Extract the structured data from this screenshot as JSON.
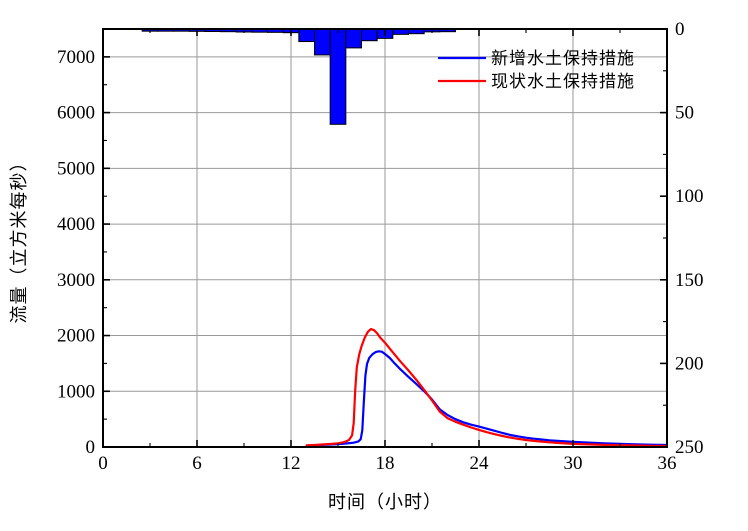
{
  "chart_data": {
    "type": "combo",
    "title": "",
    "xlabel": "时间（小时）",
    "ylabel": "流量（立方米每秒）",
    "x_axis": {
      "min": 0,
      "max": 36,
      "major_tick_values": [
        0,
        6,
        12,
        18,
        24,
        30,
        36
      ],
      "major_tick_labels": [
        "0",
        "6",
        "12",
        "18",
        "24",
        "30",
        "36"
      ],
      "minor_step": 3
    },
    "left_axis": {
      "min": 0,
      "max": 7500,
      "major_tick_values": [
        0,
        1000,
        2000,
        3000,
        4000,
        5000,
        6000,
        7000
      ],
      "major_tick_labels": [
        "0",
        "1000",
        "2000",
        "3000",
        "4000",
        "5000",
        "6000",
        "7000"
      ],
      "minor_step": 500
    },
    "right_axis": {
      "min": 0,
      "max": 250,
      "inverted": true,
      "major_tick_values": [
        0,
        50,
        100,
        150,
        200,
        250
      ],
      "major_tick_labels": [
        "0",
        "50",
        "100",
        "150",
        "200",
        "250"
      ],
      "minor_step": 25
    },
    "grid": {
      "color": "#9a9a9a",
      "vertical_at_hours": [
        6,
        12,
        18,
        24,
        30
      ],
      "horizontal_at_left_values": [
        1000,
        2000,
        3000,
        4000,
        5000,
        6000,
        7000
      ]
    },
    "legend": {
      "position": "top-right",
      "entries": [
        {
          "label": "新增水土保持措施",
          "color": "#0000ff"
        },
        {
          "label": "现状水土保持措施",
          "color": "#ff0000"
        }
      ]
    },
    "series": [
      {
        "name": "新增水土保持措施",
        "type": "line",
        "color": "#0000ff",
        "y_axis": "left",
        "points": [
          [
            13,
            25
          ],
          [
            13.5,
            32
          ],
          [
            14,
            38
          ],
          [
            14.5,
            44
          ],
          [
            15,
            52
          ],
          [
            15.5,
            62
          ],
          [
            16,
            78
          ],
          [
            16.3,
            100
          ],
          [
            16.45,
            140
          ],
          [
            16.55,
            300
          ],
          [
            16.65,
            800
          ],
          [
            16.75,
            1280
          ],
          [
            16.85,
            1490
          ],
          [
            17,
            1600
          ],
          [
            17.2,
            1665
          ],
          [
            17.4,
            1702
          ],
          [
            17.6,
            1718
          ],
          [
            17.8,
            1710
          ],
          [
            18,
            1668
          ],
          [
            18.3,
            1598
          ],
          [
            18.6,
            1505
          ],
          [
            19,
            1388
          ],
          [
            19.5,
            1258
          ],
          [
            20,
            1132
          ],
          [
            20.5,
            1000
          ],
          [
            21,
            852
          ],
          [
            21.5,
            675
          ],
          [
            22,
            572
          ],
          [
            22.5,
            498
          ],
          [
            23,
            443
          ],
          [
            23.5,
            401
          ],
          [
            24,
            366
          ],
          [
            24.5,
            328
          ],
          [
            25,
            290
          ],
          [
            25.5,
            252
          ],
          [
            26,
            216
          ],
          [
            26.5,
            190
          ],
          [
            27,
            167
          ],
          [
            27.5,
            149
          ],
          [
            28,
            134
          ],
          [
            28.5,
            121
          ],
          [
            29,
            110
          ],
          [
            29.5,
            101
          ],
          [
            30,
            93
          ],
          [
            31,
            79
          ],
          [
            32,
            67
          ],
          [
            33,
            57
          ],
          [
            34,
            49
          ],
          [
            35,
            42
          ],
          [
            36,
            36
          ]
        ]
      },
      {
        "name": "现状水土保持措施",
        "type": "line",
        "color": "#ff0000",
        "y_axis": "left",
        "points": [
          [
            13,
            28
          ],
          [
            13.5,
            36
          ],
          [
            14,
            44
          ],
          [
            14.5,
            54
          ],
          [
            15,
            66
          ],
          [
            15.4,
            88
          ],
          [
            15.7,
            125
          ],
          [
            15.9,
            210
          ],
          [
            16,
            430
          ],
          [
            16.1,
            1020
          ],
          [
            16.2,
            1430
          ],
          [
            16.35,
            1660
          ],
          [
            16.5,
            1805
          ],
          [
            16.7,
            1955
          ],
          [
            16.9,
            2065
          ],
          [
            17.1,
            2118
          ],
          [
            17.3,
            2096
          ],
          [
            17.5,
            2038
          ],
          [
            17.7,
            1962
          ],
          [
            18,
            1872
          ],
          [
            18.5,
            1700
          ],
          [
            19,
            1528
          ],
          [
            19.5,
            1372
          ],
          [
            20,
            1205
          ],
          [
            20.5,
            1025
          ],
          [
            21,
            835
          ],
          [
            21.5,
            635
          ],
          [
            22,
            515
          ],
          [
            22.5,
            452
          ],
          [
            23,
            400
          ],
          [
            23.5,
            350
          ],
          [
            24,
            306
          ],
          [
            24.5,
            266
          ],
          [
            25,
            230
          ],
          [
            25.5,
            198
          ],
          [
            26,
            168
          ],
          [
            26.5,
            146
          ],
          [
            27,
            126
          ],
          [
            27.5,
            110
          ],
          [
            28,
            96
          ],
          [
            28.5,
            84
          ],
          [
            29,
            73
          ],
          [
            29.5,
            64
          ],
          [
            30,
            56
          ],
          [
            31,
            46
          ],
          [
            32,
            38
          ],
          [
            33,
            32
          ],
          [
            34,
            27
          ],
          [
            35,
            22
          ],
          [
            36,
            18
          ]
        ]
      },
      {
        "name": "",
        "type": "bar",
        "color": "#0000ff",
        "outline": "#000000",
        "y_axis": "right",
        "bar_width_hours": 1,
        "points": [
          [
            3,
            1.3
          ],
          [
            4,
            1.3
          ],
          [
            5,
            1.3
          ],
          [
            6,
            1.4
          ],
          [
            7,
            1.5
          ],
          [
            8,
            1.6
          ],
          [
            9,
            1.8
          ],
          [
            10,
            1.9
          ],
          [
            11,
            2.0
          ],
          [
            12,
            2.2
          ],
          [
            13,
            7.5
          ],
          [
            14,
            15.5
          ],
          [
            15,
            57
          ],
          [
            16,
            11.3
          ],
          [
            17,
            7.0
          ],
          [
            18,
            5.6
          ],
          [
            19,
            3.2
          ],
          [
            20,
            2.8
          ],
          [
            21,
            1.7
          ],
          [
            22,
            1.6
          ]
        ]
      }
    ]
  }
}
